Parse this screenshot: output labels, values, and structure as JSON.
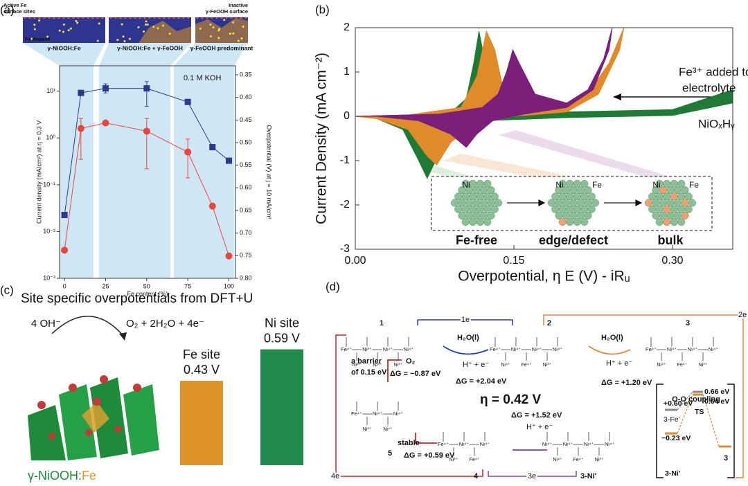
{
  "panels": [
    "(a)",
    "(b)",
    "(c)",
    "(d)"
  ],
  "chart_data": [
    {
      "type": "line",
      "header_images": [
        {
          "texts": [
            "Active Fe",
            "surface sites",
            "Fe dopant"
          ],
          "caption": "γ-NiOOH:Fe"
        },
        {
          "texts": [],
          "caption": "γ-NiOOH:Fe + γ-FeOOH"
        },
        {
          "texts": [
            "Inactive",
            "γ-FeOOH surface"
          ],
          "caption": "γ-FeOOH predominant"
        }
      ],
      "annotation": "0.1 M KOH",
      "xlabel": "Fe content (%)",
      "ylabel": "Current density (mA/cm²) at η = 0.3 V",
      "y2label": "Overpotential (V) at j = 10 mA/cm²",
      "x": [
        0,
        10,
        25,
        50,
        75,
        90,
        100
      ],
      "xlim": [
        -3,
        104
      ],
      "xticks": [
        0,
        25,
        50,
        75,
        100
      ],
      "log_y": true,
      "ylim": [
        0.001,
        35
      ],
      "yticks": [
        {
          "value": 0.001,
          "label": "10⁻³"
        },
        {
          "value": 0.01,
          "label": "10⁻²"
        },
        {
          "value": 0.1,
          "label": "10⁻¹"
        },
        {
          "value": 1,
          "label": "10⁰"
        },
        {
          "value": 10,
          "label": "10¹"
        }
      ],
      "y2_inverted": true,
      "y2lim": [
        0.33,
        0.8
      ],
      "y2ticks": [
        0.35,
        {
          "value": 0.4,
          "label": "0.40"
        },
        0.45,
        {
          "value": 0.5,
          "label": "0.50"
        },
        0.55,
        {
          "value": 0.6,
          "label": "0.60"
        },
        0.65,
        {
          "value": 0.7,
          "label": "0.70"
        },
        0.75,
        {
          "value": 0.8,
          "label": "0.80"
        }
      ],
      "series": [
        {
          "color": "#e8453c",
          "marker": "circle",
          "values": [
            0.004,
            1.6,
            2.1,
            1.4,
            0.5,
            0.035,
            0.003
          ],
          "error_range": [
            null,
            [
              0.35,
              2.6
            ],
            null,
            [
              0.22,
              2.6
            ],
            [
              0.14,
              0.95
            ],
            null,
            null
          ]
        },
        {
          "color": "#2b3a8c",
          "marker": "square",
          "axis": "y2",
          "values": [
            0.66,
            0.39,
            0.38,
            0.38,
            0.41,
            0.51,
            0.54
          ],
          "error_range": [
            null,
            null,
            [
              0.37,
              0.39
            ],
            [
              0.365,
              0.42
            ],
            null,
            null,
            null
          ]
        }
      ]
    },
    {
      "type": "area",
      "ylabel": "Current Density (mA cm⁻²)",
      "xlabel": "Overpotential, η E (V) - iRᵤ",
      "xlim": [
        0,
        0.357
      ],
      "xticks": [
        {
          "value": 0,
          "label": "0.00"
        },
        0.15,
        {
          "value": 0.3,
          "label": "0.30"
        }
      ],
      "ylim": [
        -3,
        2
      ],
      "yticks": [
        -3,
        -2,
        -1,
        0,
        1,
        2
      ],
      "annotations": [
        "Fe³⁺ added to",
        "electrolyte",
        "NiOₓHᵧ"
      ],
      "inset_labels": [
        "Ni",
        "Ni",
        "Fe",
        "Ni",
        "Fe"
      ],
      "series": [
        {
          "name": "Fe-free",
          "color": "#1f7a35",
          "x": [
            0,
            0.05,
            0.09,
            0.105,
            0.112,
            0.117,
            0.122,
            0.13,
            0.15,
            0.2,
            0.3,
            0.357,
            0.357,
            0.3,
            0.2,
            0.12,
            0.09,
            0.078,
            0.068,
            0.06,
            0.045,
            0.02,
            0
          ],
          "values": [
            0,
            0.02,
            0.08,
            0.4,
            1.2,
            1.92,
            1.3,
            0.45,
            0.18,
            0.1,
            0.15,
            0.6,
            0.3,
            0.02,
            -0.03,
            -0.1,
            -0.4,
            -0.9,
            -1.4,
            -1.0,
            -0.3,
            -0.05,
            0
          ]
        },
        {
          "name": "edge/defect",
          "color": "#e08a2a",
          "x": [
            0,
            0.05,
            0.1,
            0.115,
            0.124,
            0.132,
            0.14,
            0.16,
            0.2,
            0.22,
            0.24,
            0.254,
            0.25,
            0.23,
            0.2,
            0.15,
            0.11,
            0.09,
            0.077,
            0.068,
            0.05,
            0.02,
            0
          ],
          "values": [
            0,
            0.03,
            0.2,
            0.9,
            1.92,
            1.5,
            0.6,
            0.25,
            0.25,
            0.5,
            1.2,
            2,
            1.5,
            0.5,
            0.1,
            0,
            -0.2,
            -0.6,
            -1.1,
            -0.9,
            -0.3,
            -0.05,
            0
          ]
        },
        {
          "name": "bulk",
          "color": "#7b1f7a",
          "x": [
            0,
            0.08,
            0.12,
            0.135,
            0.143,
            0.149,
            0.155,
            0.17,
            0.2,
            0.22,
            0.235,
            0.243,
            0.24,
            0.225,
            0.2,
            0.16,
            0.13,
            0.115,
            0.105,
            0.09,
            0.06,
            0.02,
            0
          ],
          "values": [
            0,
            0.05,
            0.2,
            0.5,
            1.0,
            1.5,
            1.2,
            0.5,
            0.3,
            0.6,
            1.3,
            2,
            1.5,
            0.6,
            0.2,
            0.05,
            -0.1,
            -0.4,
            -0.7,
            -0.4,
            -0.1,
            0,
            0
          ]
        }
      ]
    },
    {
      "type": "bar",
      "title": "Site specific overpotentials from DFT+U",
      "reaction": [
        "4 OH⁻",
        "O₂ + 2H₂O + 4e⁻"
      ],
      "structure_label": [
        "γ-NiOOH:",
        "Fe"
      ],
      "categories": [
        "Fe site",
        "Ni site"
      ],
      "values": [
        0.43,
        0.59
      ],
      "value_labels": [
        "0.43 V",
        "0.59 V"
      ],
      "colors": [
        "#de9228",
        "#1f8a4c"
      ],
      "ylim": [
        0,
        0.7
      ]
    }
  ],
  "diagram": {
    "intermediates": [
      "1",
      "2",
      "3",
      "5",
      "4",
      "3-Ni'"
    ],
    "electrons": [
      "1e",
      "2e",
      "3e",
      "4e"
    ],
    "water": [
      "H₂O(l)",
      "H₂O(l)"
    ],
    "proton": [
      "H⁺ + e⁻",
      "H⁺ + e⁻",
      "H⁺ + e⁻"
    ],
    "energies": [
      "ΔG = +2.04 eV",
      "ΔG = +1.20 eV",
      "ΔG = −0.87 eV",
      "ΔG = +1.52 eV",
      "ΔG = +0.59 eV"
    ],
    "barrier": [
      "a barrier",
      "of 0.15 eV"
    ],
    "o2": "O₂",
    "stable": "stable",
    "eta": "η = 0.42 V",
    "coupling": {
      "title": "O-O coupling",
      "levels": [
        "+0.60 eV",
        "0.66 eV",
        "0.64 eV",
        "−0.23 eV"
      ],
      "states": [
        "3-Fe'",
        "TS",
        "3-Ni'",
        "3"
      ]
    },
    "structures": [
      {
        "top": [
          "Fe⁴⁺",
          "Ni³⁺",
          "Ni⁴⁺",
          "Ni⁴⁺"
        ],
        "bottom": [
          "Ni³⁺",
          "Ni⁴⁺",
          "Ni³⁺"
        ]
      },
      {
        "top": [
          "Fe⁴⁺",
          "Ni⁴⁺",
          "Ni⁴⁺",
          "Ni⁴⁺"
        ],
        "bottom": [
          "Ni⁴⁺",
          "Fe⁴⁺",
          "Ni³⁺"
        ]
      },
      {
        "top": [
          "Fe⁴⁺",
          "Ni⁴⁺",
          "Ni⁴⁺",
          "Ni⁴⁺"
        ],
        "bottom": [
          "Ni⁴⁺",
          "Fe⁴⁺",
          "Ni³⁺"
        ]
      },
      {
        "top": [
          "Fe⁴⁺",
          "Ni⁴⁺",
          "Ni⁴⁺"
        ],
        "bottom": [
          "Ni³⁺",
          "Ni⁴⁺"
        ]
      },
      {
        "top": [
          "Fe⁴⁺",
          "Ni⁴⁺",
          "Ni⁴⁺"
        ],
        "bottom": [
          "Ni³⁺",
          "Fe⁴⁺"
        ]
      },
      {
        "top": [
          "Ni⁴⁺",
          "Ni⁴⁺",
          "Ni⁴⁺",
          "Ni⁴⁺"
        ],
        "bottom": [
          "Ni⁴⁺",
          "Fe⁴⁺",
          "Ni³⁺"
        ]
      }
    ]
  }
}
